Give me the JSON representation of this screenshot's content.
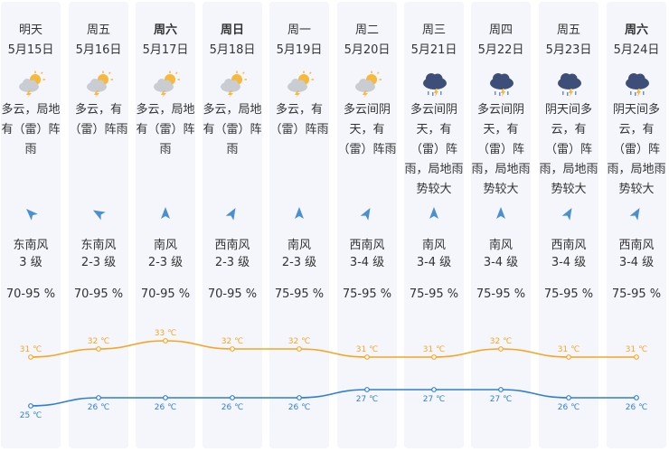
{
  "days": [
    {
      "day": "明天",
      "date": "5月15日",
      "icon": "partly-cloudy-thunder-sun-icon",
      "desc": [
        "多云，局地",
        "有（雷）阵",
        "雨"
      ],
      "wind_dir": "东南风",
      "wind_level": "3 级",
      "humidity": "70-95 %",
      "arrow_deg": -45,
      "high": "31 ℃",
      "low": "25 ℃",
      "bold": false
    },
    {
      "day": "周五",
      "date": "5月16日",
      "icon": "partly-cloudy-thunder-sun-icon",
      "desc": [
        "多云，有",
        "（雷）阵雨"
      ],
      "wind_dir": "东南风",
      "wind_level": "2-3 级",
      "humidity": "70-95 %",
      "arrow_deg": -60,
      "high": "32 ℃",
      "low": "26 ℃",
      "bold": false
    },
    {
      "day": "周六",
      "date": "5月17日",
      "icon": "partly-cloudy-thunder-sun-icon",
      "desc": [
        "多云，局地",
        "有（雷）阵",
        "雨"
      ],
      "wind_dir": "南风",
      "wind_level": "2-3 级",
      "humidity": "70-95 %",
      "arrow_deg": 0,
      "high": "33 ℃",
      "low": "26 ℃",
      "bold": true
    },
    {
      "day": "周日",
      "date": "5月18日",
      "icon": "partly-cloudy-thunder-sun-icon",
      "desc": [
        "多云，局地",
        "有（雷）阵",
        "雨"
      ],
      "wind_dir": "西南风",
      "wind_level": "2-3 级",
      "humidity": "70-95 %",
      "arrow_deg": 30,
      "high": "32 ℃",
      "low": "26 ℃",
      "bold": true
    },
    {
      "day": "周一",
      "date": "5月19日",
      "icon": "partly-cloudy-thunder-sun-icon",
      "desc": [
        "多云，有",
        "（雷）阵雨"
      ],
      "wind_dir": "南风",
      "wind_level": "2-3 级",
      "humidity": "75-95 %",
      "arrow_deg": 0,
      "high": "32 ℃",
      "low": "26 ℃",
      "bold": false
    },
    {
      "day": "周二",
      "date": "5月20日",
      "icon": "partly-cloudy-thunder-sun-icon",
      "desc": [
        "多云间阴",
        "天，有",
        "（雷）阵雨"
      ],
      "wind_dir": "西南风",
      "wind_level": "3-4 级",
      "humidity": "75-95 %",
      "arrow_deg": 30,
      "high": "31 ℃",
      "low": "27 ℃",
      "bold": false
    },
    {
      "day": "周三",
      "date": "5月21日",
      "icon": "thunderstorm-cloud-icon",
      "desc": [
        "多云间阴",
        "天，有",
        "（雷）阵",
        "雨，局地雨",
        "势较大"
      ],
      "wind_dir": "南风",
      "wind_level": "3-4 级",
      "humidity": "75-95 %",
      "arrow_deg": 0,
      "high": "31 ℃",
      "low": "27 ℃",
      "bold": false
    },
    {
      "day": "周四",
      "date": "5月22日",
      "icon": "thunderstorm-cloud-icon",
      "desc": [
        "多云间阴",
        "天，有",
        "（雷）阵",
        "雨，局地雨",
        "势较大"
      ],
      "wind_dir": "南风",
      "wind_level": "3-4 级",
      "humidity": "75-95 %",
      "arrow_deg": 0,
      "high": "32 ℃",
      "low": "27 ℃",
      "bold": false
    },
    {
      "day": "周五",
      "date": "5月23日",
      "icon": "thunderstorm-cloud-icon",
      "desc": [
        "阴天间多",
        "云，有",
        "（雷）阵",
        "雨，局地雨",
        "势较大"
      ],
      "wind_dir": "西南风",
      "wind_level": "3-4 级",
      "humidity": "75-95 %",
      "arrow_deg": 30,
      "high": "31 ℃",
      "low": "26 ℃",
      "bold": false
    },
    {
      "day": "周六",
      "date": "5月24日",
      "icon": "thunderstorm-cloud-icon",
      "desc": [
        "阴天间多",
        "云，有",
        "（雷）阵",
        "雨，局地雨",
        "势较大"
      ],
      "wind_dir": "西南风",
      "wind_level": "3-4 级",
      "humidity": "75-95 %",
      "arrow_deg": 30,
      "high": "31 ℃",
      "low": "26 ℃",
      "bold": true
    }
  ],
  "chart_data": {
    "type": "line",
    "categories": [
      "5月15日",
      "5月16日",
      "5月17日",
      "5月18日",
      "5月19日",
      "5月20日",
      "5月21日",
      "5月22日",
      "5月23日",
      "5月24日"
    ],
    "series": [
      {
        "values": [
          31,
          32,
          33,
          32,
          32,
          31,
          31,
          32,
          31,
          31
        ],
        "color": "#f5a623"
      },
      {
        "values": [
          25,
          26,
          26,
          26,
          26,
          27,
          27,
          27,
          26,
          26
        ],
        "color": "#2f7fd1"
      }
    ],
    "unit": "℃"
  },
  "colors": {
    "high": "#f5a623",
    "low": "#2f7fd1",
    "cloud": "#c9ccd3",
    "sun": "#f6b93b",
    "storm": "#3d4f79"
  }
}
